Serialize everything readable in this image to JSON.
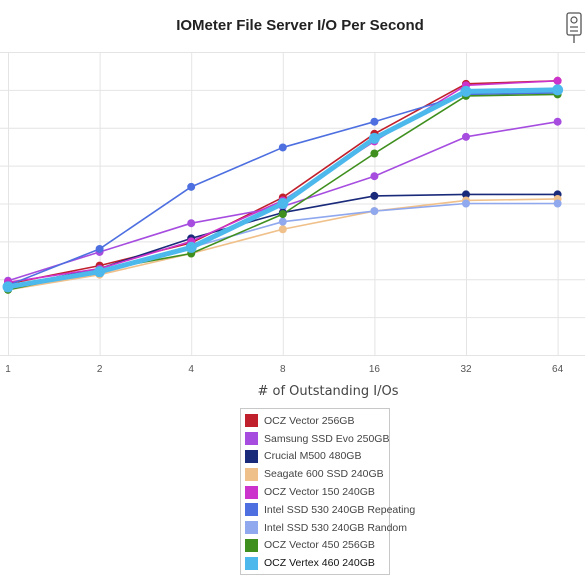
{
  "chart_data": {
    "type": "line",
    "title": "IOMeter File Server I/O Per Second",
    "xlabel": "# of Outstanding I/Os",
    "ylabel": "",
    "x": [
      1,
      2,
      4,
      8,
      16,
      32,
      64
    ],
    "x_scale": "log2",
    "ylim": [
      0,
      1
    ],
    "grid": true,
    "legend_position": "bottom-center",
    "series": [
      {
        "name": "OCZ Vector 256GB",
        "color": "#c0202c",
        "values": [
          0.235,
          0.295,
          0.37,
          0.52,
          0.73,
          0.895,
          0.905
        ]
      },
      {
        "name": "Samsung SSD Evo 250GB",
        "color": "#a64de0",
        "values": [
          0.245,
          0.34,
          0.435,
          0.49,
          0.59,
          0.72,
          0.77
        ]
      },
      {
        "name": "Crucial M500 480GB",
        "color": "#1a2a7a",
        "values": [
          0.225,
          0.285,
          0.385,
          0.47,
          0.525,
          0.53,
          0.53
        ]
      },
      {
        "name": "Seagate 600 SSD 240GB",
        "color": "#f0c08a",
        "values": [
          0.215,
          0.265,
          0.335,
          0.415,
          0.475,
          0.51,
          0.515
        ]
      },
      {
        "name": "OCZ Vector 150 240GB",
        "color": "#cc33cc",
        "values": [
          0.24,
          0.285,
          0.375,
          0.51,
          0.705,
          0.89,
          0.905
        ]
      },
      {
        "name": "Intel SSD 530 240GB Repeating",
        "color": "#4d6fe0",
        "values": [
          0.23,
          0.35,
          0.555,
          0.685,
          0.77,
          0.86,
          0.865
        ]
      },
      {
        "name": "Intel SSD 530 240GB Random",
        "color": "#8fa8ee",
        "values": [
          0.225,
          0.28,
          0.355,
          0.44,
          0.475,
          0.5,
          0.5
        ]
      },
      {
        "name": "OCZ Vector 450 256GB",
        "color": "#3f8f1e",
        "values": [
          0.215,
          0.28,
          0.335,
          0.465,
          0.665,
          0.855,
          0.86
        ]
      },
      {
        "name": "OCZ Vertex 460 240GB",
        "color": "#4db8ec",
        "values": [
          0.225,
          0.275,
          0.355,
          0.5,
          0.715,
          0.87,
          0.875
        ]
      }
    ]
  }
}
